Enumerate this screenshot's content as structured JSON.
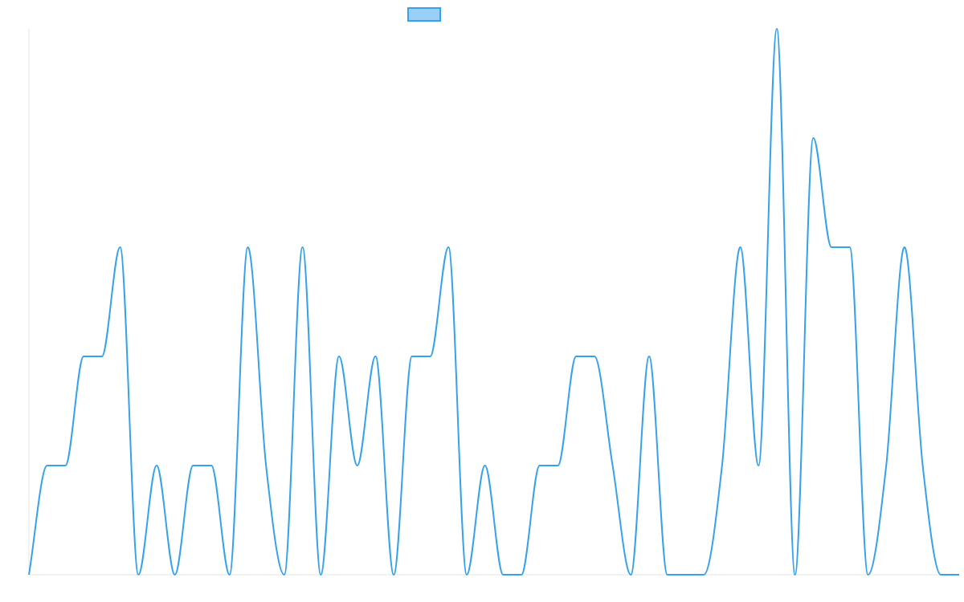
{
  "chart_data": {
    "type": "line",
    "title": "",
    "xlabel": "",
    "ylabel": "",
    "legend": {
      "position": "top-center",
      "entries": [
        {
          "label": "",
          "color": "#36a2eb"
        }
      ]
    },
    "grid": false,
    "ylim": [
      0,
      5
    ],
    "x": [
      0,
      1,
      2,
      3,
      4,
      5,
      6,
      7,
      8,
      9,
      10,
      11,
      12,
      13,
      14,
      15,
      16,
      17,
      18,
      19,
      20,
      21,
      22,
      23,
      24,
      25,
      26,
      27,
      28,
      29,
      30,
      31,
      32,
      33,
      34,
      35,
      36,
      37,
      38,
      39,
      40,
      41,
      42,
      43,
      44,
      45,
      46,
      47,
      48,
      49,
      50,
      51
    ],
    "series": [
      {
        "color": "#36a2eb",
        "fill": "#9ad0f5",
        "values": [
          0,
          1,
          1,
          2,
          2,
          3,
          0,
          1,
          0,
          1,
          1,
          0,
          3,
          1,
          0,
          3,
          0,
          2,
          1,
          2,
          0,
          2,
          2,
          3,
          0,
          1,
          0,
          0,
          1,
          1,
          2,
          2,
          1,
          0,
          2,
          0,
          0,
          0,
          1,
          3,
          1,
          5,
          0,
          4,
          3,
          3,
          0,
          1,
          3,
          1,
          0,
          0
        ]
      }
    ]
  }
}
